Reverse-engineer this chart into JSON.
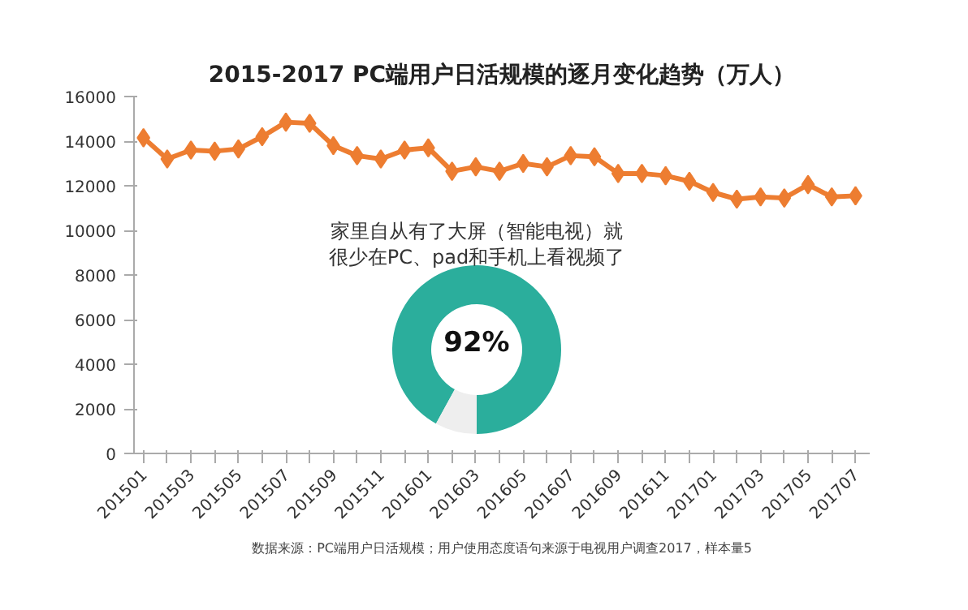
{
  "chart_data": [
    {
      "type": "line",
      "title": "2015-2017 PC端用户日活规模的逐月变化趋势（万人）",
      "categories": [
        "201501",
        null,
        "201503",
        null,
        "201505",
        null,
        "201507",
        null,
        "201509",
        null,
        "201511",
        null,
        "201601",
        null,
        "201603",
        null,
        "201605",
        null,
        "201607",
        null,
        "201609",
        null,
        "201611",
        null,
        "201701",
        null,
        "201703",
        null,
        "201705",
        null,
        "201707"
      ],
      "series": [
        {
          "color": "#ed7d31",
          "values": [
            14150,
            13200,
            13600,
            13550,
            13650,
            14200,
            14850,
            14800,
            13800,
            13350,
            13200,
            13600,
            13700,
            12650,
            12850,
            12650,
            13000,
            12850,
            13350,
            13300,
            12550,
            12550,
            12450,
            12200,
            11700,
            11400,
            11500,
            11450,
            12050,
            11500,
            11550
          ]
        }
      ],
      "ylim": [
        0,
        16000
      ],
      "yticks": [
        0,
        2000,
        4000,
        6000,
        8000,
        10000,
        12000,
        14000,
        16000
      ],
      "marker": "diamond",
      "line_style": "solid",
      "grid": false,
      "annotations": [
        "数据来源：PC端用户日活规模；用户使用态度语句来源于电视用户调查2017，样本量5"
      ]
    },
    {
      "type": "donut",
      "title": "家里自从有了大屏（智能电视）就很少在PC、pad和手机上看视频了",
      "categories": [
        null,
        null
      ],
      "values": [
        92,
        8
      ],
      "colors": [
        "#2bae9c",
        "#eeeeee"
      ],
      "value_labels": [
        "92%",
        null
      ]
    }
  ]
}
